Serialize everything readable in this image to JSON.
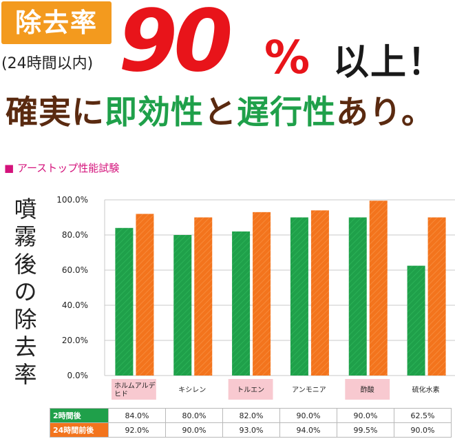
{
  "header": {
    "badge": "除去率",
    "badge_sub": "(24時間以内)",
    "big_number": "90",
    "percent_sign": "%",
    "big_suffix": "以上！",
    "headline_parts": [
      {
        "text": "確実に",
        "color": "#5a2a10"
      },
      {
        "text": "即効性",
        "color": "#1fa04a"
      },
      {
        "text": "と",
        "color": "#5a2a10"
      },
      {
        "text": "遅行性",
        "color": "#1fa04a"
      },
      {
        "text": "あり。",
        "color": "#5a2a10"
      }
    ]
  },
  "section_title": "■ アーストップ性能試験",
  "colors": {
    "orange": "#f3741d",
    "green": "#1fa04a",
    "red": "#e8141a",
    "pink_label_bg": "#f8c9d0",
    "table_row1_bg": "#1fa04a",
    "table_row2_bg": "#f3741d"
  },
  "chart_data": {
    "type": "bar",
    "ylabel": "噴霧後の除去率",
    "ylim": [
      0,
      100
    ],
    "yticks": [
      "0.0%",
      "20.0%",
      "40.0%",
      "60.0%",
      "80.0%",
      "100.0%"
    ],
    "categories": [
      "ホルムアルデヒド",
      "キシレン",
      "トルエン",
      "アンモニア",
      "酢酸",
      "硫化水素"
    ],
    "category_highlight": [
      true,
      false,
      true,
      false,
      true,
      false
    ],
    "series": [
      {
        "name": "2時間後",
        "values": [
          84.0,
          80.0,
          82.0,
          90.0,
          90.0,
          62.5
        ]
      },
      {
        "name": "24時間前後",
        "values": [
          92.0,
          90.0,
          93.0,
          94.0,
          99.5,
          90.0
        ]
      }
    ]
  },
  "table": {
    "rows": [
      {
        "label": "2時間後",
        "values": [
          "84.0%",
          "80.0%",
          "82.0%",
          "90.0%",
          "90.0%",
          "62.5%"
        ]
      },
      {
        "label": "24時間前後",
        "values": [
          "92.0%",
          "90.0%",
          "93.0%",
          "94.0%",
          "99.5%",
          "90.0%"
        ]
      }
    ]
  }
}
